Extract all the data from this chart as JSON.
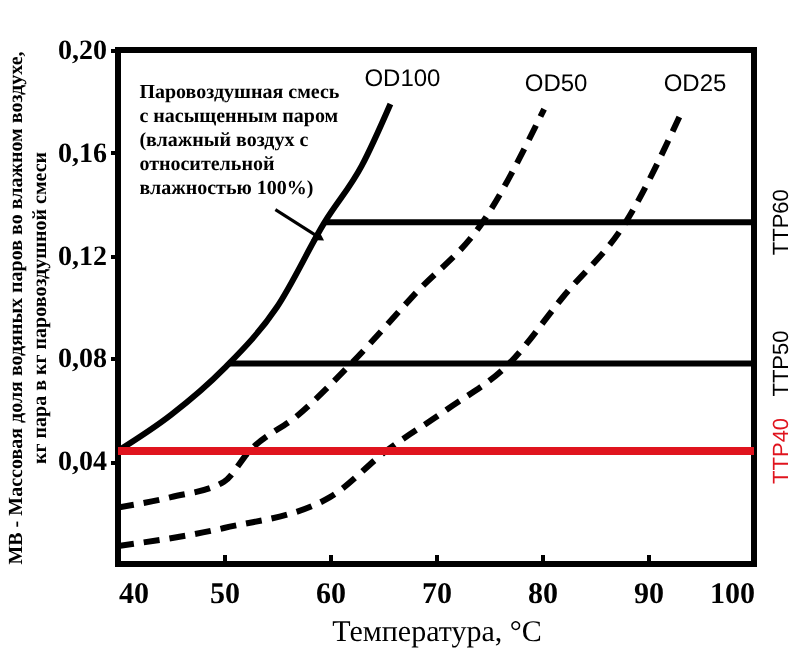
{
  "chart_data": {
    "type": "line",
    "xlabel": "Температура, °C",
    "ylabel": "МВ - Массовая доля водяных паров во влажном воздухе,\nкг пара в кг паровоздушной смеси",
    "xlim": [
      40,
      100
    ],
    "xticks": [
      40,
      50,
      60,
      70,
      80,
      90,
      100
    ],
    "ylim": [
      0,
      0.2
    ],
    "yticks": [
      {
        "value": 0.04,
        "label": "0,04"
      },
      {
        "value": 0.08,
        "label": "0,08"
      },
      {
        "value": 0.12,
        "label": "0,12"
      },
      {
        "value": 0.16,
        "label": "0,16"
      },
      {
        "value": 0.2,
        "label": "0,20"
      }
    ],
    "grid": false,
    "marker": "none",
    "series": [
      {
        "name": "OD100",
        "color": "#000000",
        "line_style": "solid",
        "x": [
          40,
          45,
          50,
          55,
          59.5,
          63,
          65.7
        ],
        "values": [
          0.044,
          0.058,
          0.076,
          0.1,
          0.133,
          0.155,
          0.179
        ]
      },
      {
        "name": "OD50",
        "color": "#000000",
        "line_style": "dashed",
        "x": [
          40,
          45,
          50,
          52.4,
          57,
          62,
          68,
          74.4,
          80.2
        ],
        "values": [
          0.022,
          0.026,
          0.032,
          0.044,
          0.058,
          0.078,
          0.105,
          0.133,
          0.177
        ]
      },
      {
        "name": "OD25",
        "color": "#000000",
        "line_style": "dashed",
        "x": [
          40,
          50,
          60,
          65.3,
          71,
          76.9,
          82,
          87.9,
          93.3
        ],
        "values": [
          0.007,
          0.014,
          0.026,
          0.044,
          0.06,
          0.078,
          0.104,
          0.133,
          0.177
        ]
      },
      {
        "name": "TTP60",
        "color": "#000000",
        "line_style": "solid",
        "x": [
          59.5,
          100
        ],
        "values": [
          0.133,
          0.133
        ]
      },
      {
        "name": "TTP50",
        "color": "#000000",
        "line_style": "solid",
        "x": [
          50.4,
          100
        ],
        "values": [
          0.078,
          0.078
        ]
      },
      {
        "name": "TTP40",
        "color": "#e0141e",
        "line_style": "solid",
        "x": [
          40,
          100
        ],
        "values": [
          0.044,
          0.044
        ]
      }
    ],
    "annotations": [
      {
        "text": "Паровоздушная смесь\nс насыщенным паром\n(влажный воздух с\nотносительной\nвлажностью 100%)",
        "x": 59,
        "y": 0.127
      }
    ]
  }
}
